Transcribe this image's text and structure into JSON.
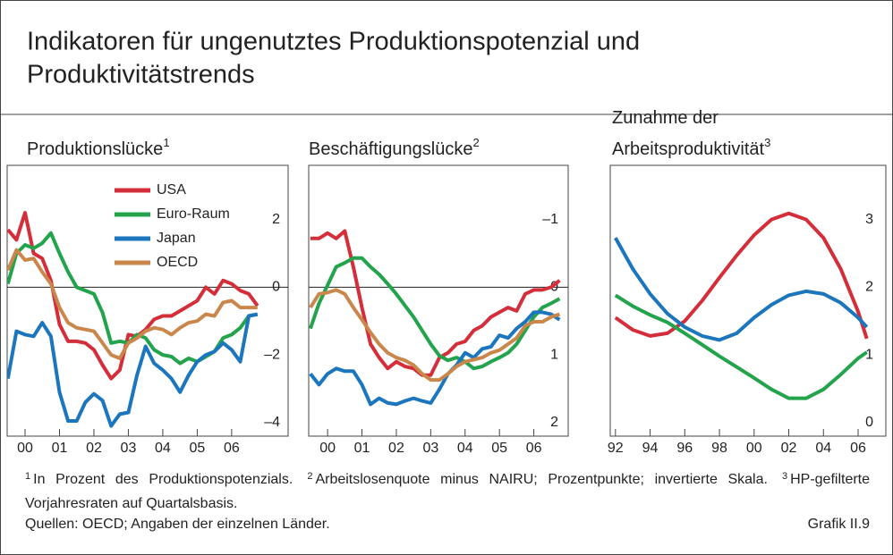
{
  "title": [
    "Indikatoren für ungenutztes Produktionspotenzial und",
    "Produktivitätstrends"
  ],
  "chart_data": [
    {
      "type": "line",
      "title": [
        "Produktionslücke"
      ],
      "title_note": "1",
      "x": [
        1999.5,
        1999.75,
        2000,
        2000.25,
        2000.5,
        2000.75,
        2001,
        2001.25,
        2001.5,
        2001.75,
        2002,
        2002.25,
        2002.5,
        2002.75,
        2003,
        2003.25,
        2003.5,
        2003.75,
        2004,
        2004.25,
        2004.5,
        2004.75,
        2005,
        2005.25,
        2005.5,
        2005.75,
        2006,
        2006.25,
        2006.5,
        2006.75
      ],
      "xlim": [
        1999.48,
        2007.64
      ],
      "xticks": [
        {
          "value": 2000,
          "label": "00"
        },
        {
          "value": 2001,
          "label": "01"
        },
        {
          "value": 2002,
          "label": "02"
        },
        {
          "value": 2003,
          "label": "03"
        },
        {
          "value": 2004,
          "label": "04"
        },
        {
          "value": 2005,
          "label": "05"
        },
        {
          "value": 2006,
          "label": "06"
        }
      ],
      "ylim": [
        -4.4,
        3.6
      ],
      "yticks": [
        2,
        0,
        {
          "value": -2,
          "label": "–2"
        },
        {
          "value": -4,
          "label": "–4"
        }
      ],
      "zero_line": true,
      "legend": "top",
      "series": [
        {
          "name": "USA",
          "color": "#d42e3a",
          "values": [
            1.7,
            1.4,
            2.2,
            1.0,
            0.85,
            0.2,
            -1.1,
            -1.6,
            -1.6,
            -1.65,
            -1.85,
            -2.3,
            -2.7,
            -2.45,
            -1.4,
            -1.45,
            -1.25,
            -0.95,
            -0.85,
            -0.85,
            -0.7,
            -0.55,
            -0.4,
            0,
            -0.2,
            0.2,
            0.1,
            -0.1,
            -0.2,
            -0.55
          ]
        },
        {
          "name": "Euro-Raum",
          "color": "#22a34c",
          "values": [
            0.1,
            1.0,
            1.25,
            1.15,
            1.3,
            1.6,
            1.0,
            0.45,
            0,
            -0.1,
            -0.2,
            -0.75,
            -1.65,
            -1.6,
            -1.65,
            -1.4,
            -1.5,
            -1.85,
            -2.0,
            -2.05,
            -2.25,
            -2.1,
            -2.2,
            -2.05,
            -1.9,
            -1.5,
            -1.4,
            -1.2,
            -0.85,
            -0.8
          ]
        },
        {
          "name": "Japan",
          "color": "#1c76bd",
          "values": [
            -2.7,
            -1.3,
            -1.4,
            -1.45,
            -1.05,
            -1.45,
            -3.1,
            -3.95,
            -3.95,
            -3.4,
            -3.15,
            -3.35,
            -4.1,
            -3.75,
            -3.7,
            -2.6,
            -1.75,
            -2.25,
            -2.45,
            -2.7,
            -3.1,
            -2.6,
            -2.2,
            -2.0,
            -1.9,
            -1.65,
            -1.85,
            -2.2,
            -0.85,
            -0.8
          ]
        },
        {
          "name": "OECD",
          "color": "#c9874b",
          "values": [
            0.5,
            1.1,
            0.8,
            0.85,
            0.45,
            0.1,
            -0.6,
            -1.05,
            -1.2,
            -1.25,
            -1.3,
            -1.65,
            -2.0,
            -2.1,
            -1.65,
            -1.5,
            -1.3,
            -1.2,
            -1.25,
            -1.4,
            -1.2,
            -1.05,
            -1.0,
            -0.8,
            -0.85,
            -0.45,
            -0.4,
            -0.6,
            -0.6,
            -0.6
          ]
        }
      ]
    },
    {
      "type": "line",
      "title": [
        "Beschäftigungslücke"
      ],
      "title_note": "2",
      "x": [
        1999.5,
        1999.75,
        2000,
        2000.25,
        2000.5,
        2000.75,
        2001,
        2001.25,
        2001.5,
        2001.75,
        2002,
        2002.25,
        2002.5,
        2002.75,
        2003,
        2003.25,
        2003.5,
        2003.75,
        2004,
        2004.25,
        2004.5,
        2004.75,
        2005,
        2005.25,
        2005.5,
        2005.75,
        2006,
        2006.25,
        2006.5,
        2006.75
      ],
      "xlim": [
        1999.45,
        2007.0
      ],
      "xticks": [
        {
          "value": 2000,
          "label": "00"
        },
        {
          "value": 2001,
          "label": "01"
        },
        {
          "value": 2002,
          "label": "02"
        },
        {
          "value": 2003,
          "label": "03"
        },
        {
          "value": 2004,
          "label": "04"
        },
        {
          "value": 2005,
          "label": "05"
        },
        {
          "value": 2006,
          "label": "06"
        }
      ],
      "ylim": [
        -1.8,
        2.2
      ],
      "y_inverted": true,
      "yticks": [
        {
          "value": -1,
          "label": "–1"
        },
        0,
        1,
        2
      ],
      "zero_line": true,
      "series": [
        {
          "color": "#d42e3a",
          "values": [
            -0.72,
            -0.72,
            -0.8,
            -0.72,
            -0.83,
            -0.3,
            0.3,
            0.84,
            1.04,
            1.2,
            1.1,
            1.17,
            1.2,
            1.3,
            1.3,
            1.04,
            0.97,
            0.84,
            0.8,
            0.64,
            0.57,
            0.44,
            0.37,
            0.3,
            0.35,
            0.1,
            0.04,
            0.04,
            0,
            -0.1
          ]
        },
        {
          "color": "#22a34c",
          "values": [
            0.61,
            0.24,
            -0.03,
            -0.3,
            -0.36,
            -0.43,
            -0.43,
            -0.3,
            -0.19,
            -0.05,
            0.1,
            0.27,
            0.44,
            0.64,
            0.84,
            1.01,
            1.08,
            1.04,
            1.1,
            1.2,
            1.17,
            1.1,
            1.04,
            0.97,
            0.84,
            0.64,
            0.44,
            0.3,
            0.24,
            0.17
          ]
        },
        {
          "color": "#1c76bd",
          "values": [
            1.28,
            1.44,
            1.28,
            1.2,
            1.24,
            1.24,
            1.44,
            1.73,
            1.64,
            1.71,
            1.73,
            1.68,
            1.64,
            1.68,
            1.71,
            1.51,
            1.28,
            1.15,
            0.97,
            1.04,
            0.91,
            0.88,
            0.71,
            0.75,
            0.61,
            0.51,
            0.37,
            0.37,
            0.4,
            0.48
          ]
        },
        {
          "color": "#c9874b",
          "values": [
            0.3,
            0.1,
            0.08,
            0.04,
            0.1,
            0.3,
            0.48,
            0.67,
            0.84,
            0.97,
            1.04,
            1.08,
            1.15,
            1.28,
            1.37,
            1.37,
            1.28,
            1.17,
            1.1,
            1.07,
            1.04,
            0.97,
            0.93,
            0.84,
            0.75,
            0.57,
            0.51,
            0.51,
            0.44,
            0.4
          ]
        }
      ]
    },
    {
      "type": "line",
      "title": [
        "Zunahme der",
        "Arbeitsproduktivität"
      ],
      "title_note": "3",
      "x": [
        1992,
        1993,
        1994,
        1995,
        1996,
        1997,
        1998,
        1999,
        2000,
        2001,
        2002,
        2003,
        2004,
        2005,
        2006,
        2006.5
      ],
      "xlim": [
        1991.7,
        2007.6
      ],
      "xticks": [
        {
          "value": 1992,
          "label": "92"
        },
        {
          "value": 1994,
          "label": "94"
        },
        {
          "value": 1996,
          "label": "96"
        },
        {
          "value": 1998,
          "label": "98"
        },
        {
          "value": 2000,
          "label": "00"
        },
        {
          "value": 2002,
          "label": "02"
        },
        {
          "value": 2004,
          "label": "04"
        },
        {
          "value": 2006,
          "label": "06"
        }
      ],
      "ylim": [
        -0.2,
        3.8
      ],
      "yticks": [
        3,
        2,
        1,
        0
      ],
      "series": [
        {
          "color": "#d42e3a",
          "values": [
            1.55,
            1.37,
            1.28,
            1.32,
            1.5,
            1.8,
            2.14,
            2.47,
            2.77,
            3.0,
            3.09,
            3.0,
            2.73,
            2.27,
            1.64,
            1.24
          ]
        },
        {
          "color": "#1c76bd",
          "values": [
            2.73,
            2.27,
            1.9,
            1.61,
            1.41,
            1.28,
            1.22,
            1.32,
            1.55,
            1.74,
            1.88,
            1.94,
            1.9,
            1.77,
            1.55,
            1.41
          ]
        },
        {
          "color": "#22a34c",
          "values": [
            1.88,
            1.72,
            1.59,
            1.48,
            1.32,
            1.15,
            0.98,
            0.82,
            0.66,
            0.49,
            0.36,
            0.36,
            0.49,
            0.71,
            0.95,
            1.04
          ]
        }
      ]
    }
  ],
  "footnotes": [
    {
      "mark": "1",
      "text": "In Prozent des Produktionspotenzials."
    },
    {
      "mark": "2",
      "text": "Arbeitslosenquote minus NAIRU; Prozentpunkte; invertierte Skala."
    },
    {
      "mark": "3",
      "text": "HP-gefilterte Vorjahresraten auf Quartalsbasis."
    }
  ],
  "source": "Quellen: OECD; Angaben der einzelnen Länder.",
  "chart_id": "Grafik II.9"
}
